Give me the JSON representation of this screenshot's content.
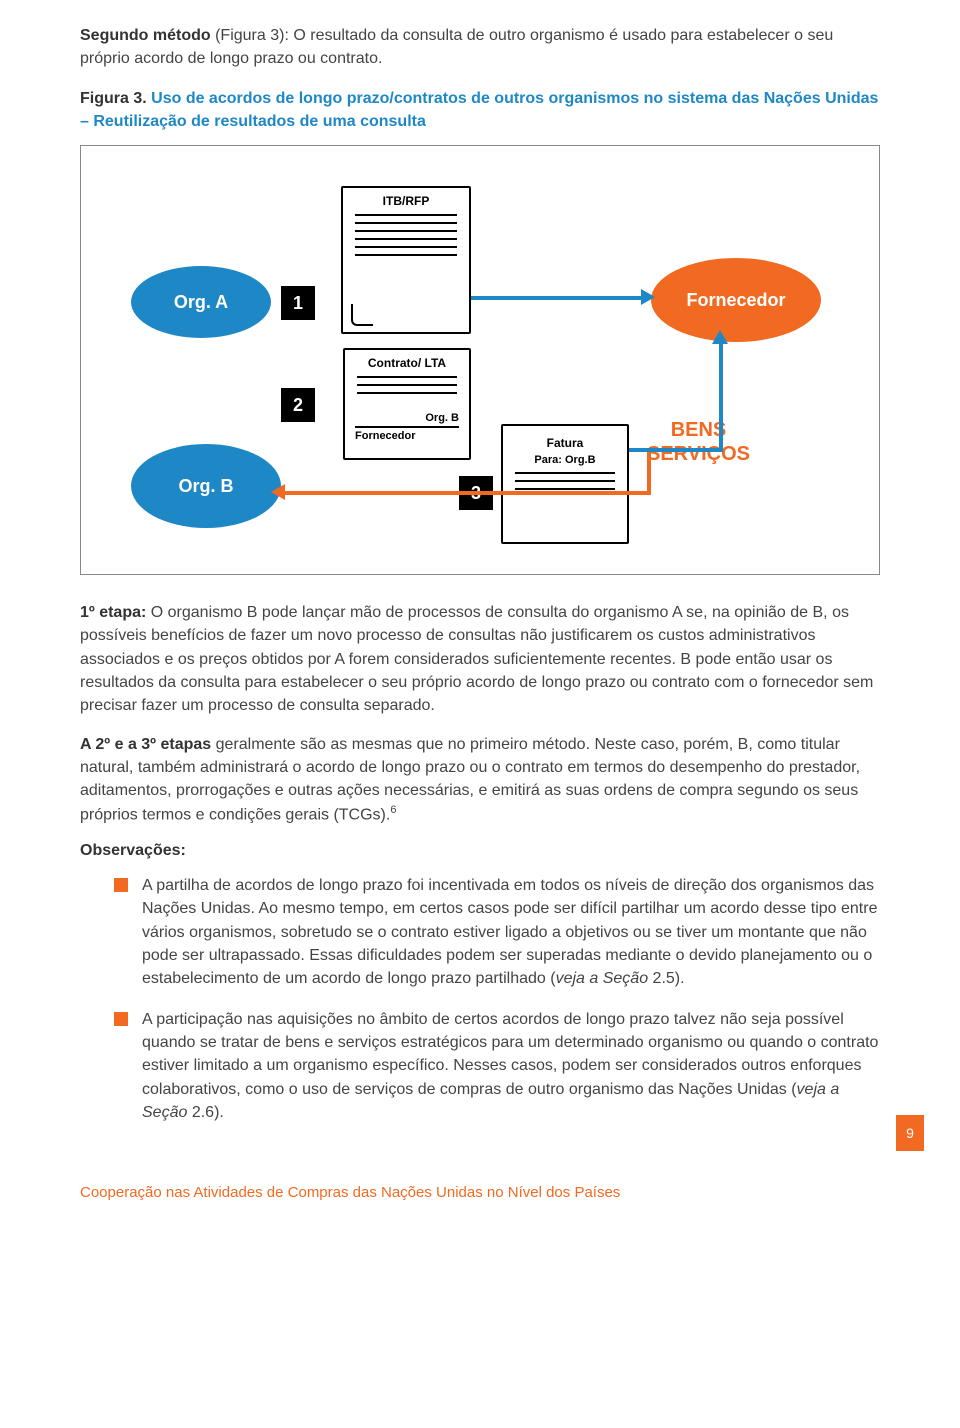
{
  "intro": {
    "bold": "Segundo método",
    "rest": " (Figura 3): O resultado da consulta de outro organismo é usado para estabelecer o seu próprio acordo de longo prazo ou contrato."
  },
  "figure": {
    "label": "Figura 3.",
    "title": "Uso de acordos de longo prazo/contratos de outros organismos no sistema das Nações Unidas – Reutilização de resultados de uma consulta",
    "title_color": "#1e88c7",
    "orgA": "Org. A",
    "orgB": "Org. B",
    "fornecedor": "Fornecedor",
    "n1": "1",
    "n2": "2",
    "n3": "3",
    "itb_title": "ITB/RFP",
    "contrato_title": "Contrato/ LTA",
    "contrato_sub1": "Org. B",
    "contrato_sub2": "Fornecedor",
    "fatura_title": "Fatura",
    "fatura_sub": "Para: Org.B",
    "bens_line1": "BENS",
    "bens_line2": "SERVIÇOS",
    "blue": "#1e88c7",
    "orange": "#f26a21",
    "black": "#000000"
  },
  "para1": {
    "bold": "1º etapa:",
    "text": " O organismo B pode lançar mão de processos de consulta do organismo A se, na opinião de B, os possíveis benefícios de fazer um novo processo de consultas não justificarem os custos administrativos associados e os preços obtidos por A forem considerados suficientemente recentes. B pode então usar os resultados da consulta para estabelecer o seu próprio acordo de longo prazo ou contrato com o fornecedor sem precisar fazer um processo de consulta separado."
  },
  "para2": {
    "bold": "A 2º e a 3º etapas",
    "text": " geralmente são as mesmas que no primeiro método. Neste caso, porém, B, como titular natural, também administrará o acordo de longo prazo ou o contrato em termos do desempenho do prestador, aditamentos, prorrogações e outras ações necessárias, e emitirá as suas ordens de compra segundo os seus próprios termos e condições gerais (TCGs).",
    "sup": "6"
  },
  "obs_head": "Observações:",
  "obs": [
    "A partilha de acordos de longo prazo foi incentivada em todos os níveis de direção dos organismos das Nações Unidas. Ao mesmo tempo, em certos casos pode ser difícil partilhar um acordo desse tipo entre vários organismos, sobretudo se o contrato estiver ligado a objetivos ou se tiver um montante que não pode ser ultrapassado. Essas dificuldades podem ser superadas mediante o devido planejamento ou o estabelecimento de um acordo de longo prazo partilhado (<em>veja a Seção</em> 2.5).",
    "A participação nas aquisições no âmbito de certos acordos de longo prazo talvez não seja possível quando se tratar de bens e serviços estratégicos para um determinado organismo ou quando o contrato estiver limitado a um organismo específico. Nesses casos, podem ser considerados outros enforques colaborativos, como o uso de serviços de compras de outro organismo das Nações Unidas (<em>veja a Seção</em> 2.6)."
  ],
  "page_num": "9",
  "footer": "Cooperação nas Atividades de Compras das Nações Unidas no Nível dos Países"
}
